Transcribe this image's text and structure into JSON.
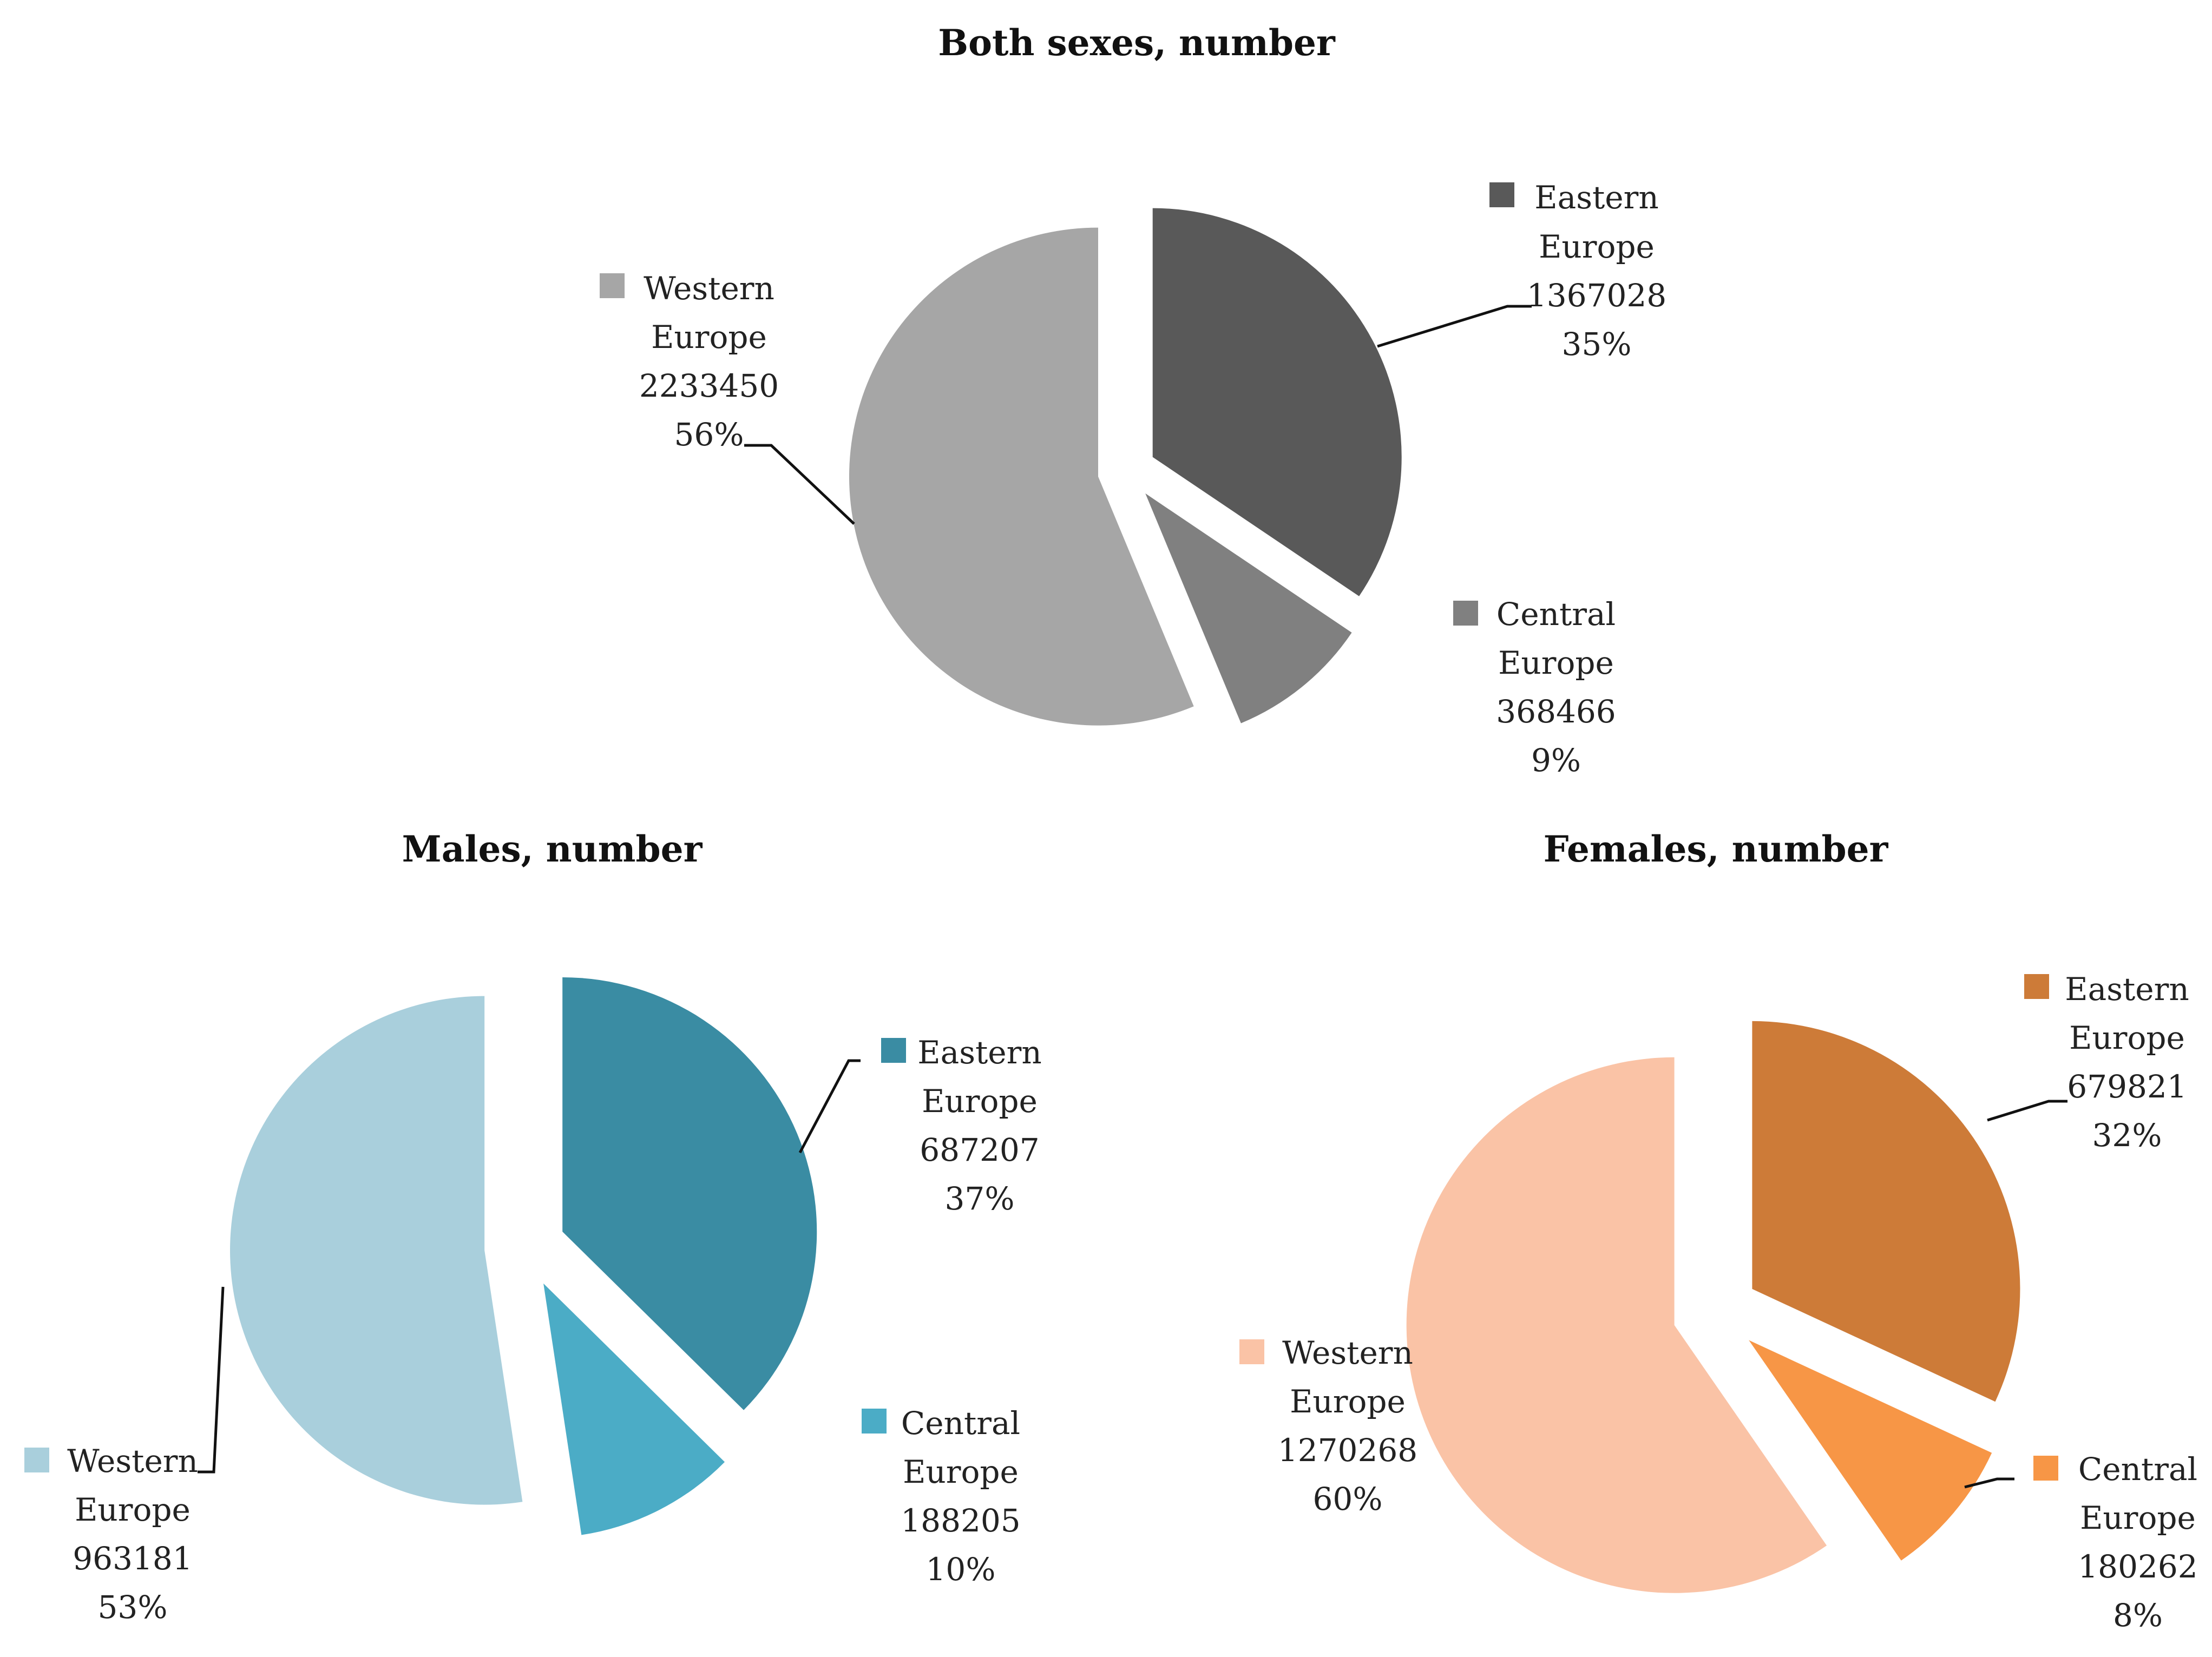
{
  "chart_data": [
    {
      "type": "pie",
      "title": "Both sexes, number",
      "exploded": true,
      "slices": [
        {
          "name": "Eastern Europe",
          "name_lines": [
            "Eastern",
            "Europe"
          ],
          "value": 1367028,
          "value_label": "1367028",
          "percent_label": "35%",
          "color": "#595959"
        },
        {
          "name": "Central Europe",
          "name_lines": [
            "Central",
            "Europe"
          ],
          "value": 368466,
          "value_label": "368466",
          "percent_label": "9%",
          "color": "#808080"
        },
        {
          "name": "Western Europe",
          "name_lines": [
            "Western",
            "Europe"
          ],
          "value": 2233450,
          "value_label": "2233450",
          "percent_label": "56%",
          "color": "#a6a6a6"
        }
      ]
    },
    {
      "type": "pie",
      "title": "Males, number",
      "exploded": true,
      "slices": [
        {
          "name": "Eastern Europe",
          "name_lines": [
            "Eastern",
            "Europe"
          ],
          "value": 687207,
          "value_label": "687207",
          "percent_label": "37%",
          "color": "#3a8ca3"
        },
        {
          "name": "Central Europe",
          "name_lines": [
            "Central",
            "Europe"
          ],
          "value": 188205,
          "value_label": "188205",
          "percent_label": "10%",
          "color": "#4bacc6"
        },
        {
          "name": "Western Europe",
          "name_lines": [
            "Western",
            "Europe"
          ],
          "value": 963181,
          "value_label": "963181",
          "percent_label": "53%",
          "color": "#a9cfdc"
        }
      ]
    },
    {
      "type": "pie",
      "title": "Females, number",
      "exploded": true,
      "slices": [
        {
          "name": "Eastern Europe",
          "name_lines": [
            "Eastern",
            "Europe"
          ],
          "value": 679821,
          "value_label": "679821",
          "percent_label": "32%",
          "color": "#cd7b38"
        },
        {
          "name": "Central Europe",
          "name_lines": [
            "Central",
            "Europe"
          ],
          "value": 180262,
          "value_label": "180262",
          "percent_label": "8%",
          "color": "#f79646"
        },
        {
          "name": "Western Europe",
          "name_lines": [
            "Western",
            "Europe"
          ],
          "value": 1270268,
          "value_label": "1270268",
          "percent_label": "60%",
          "color": "#fac3a6"
        }
      ]
    }
  ]
}
